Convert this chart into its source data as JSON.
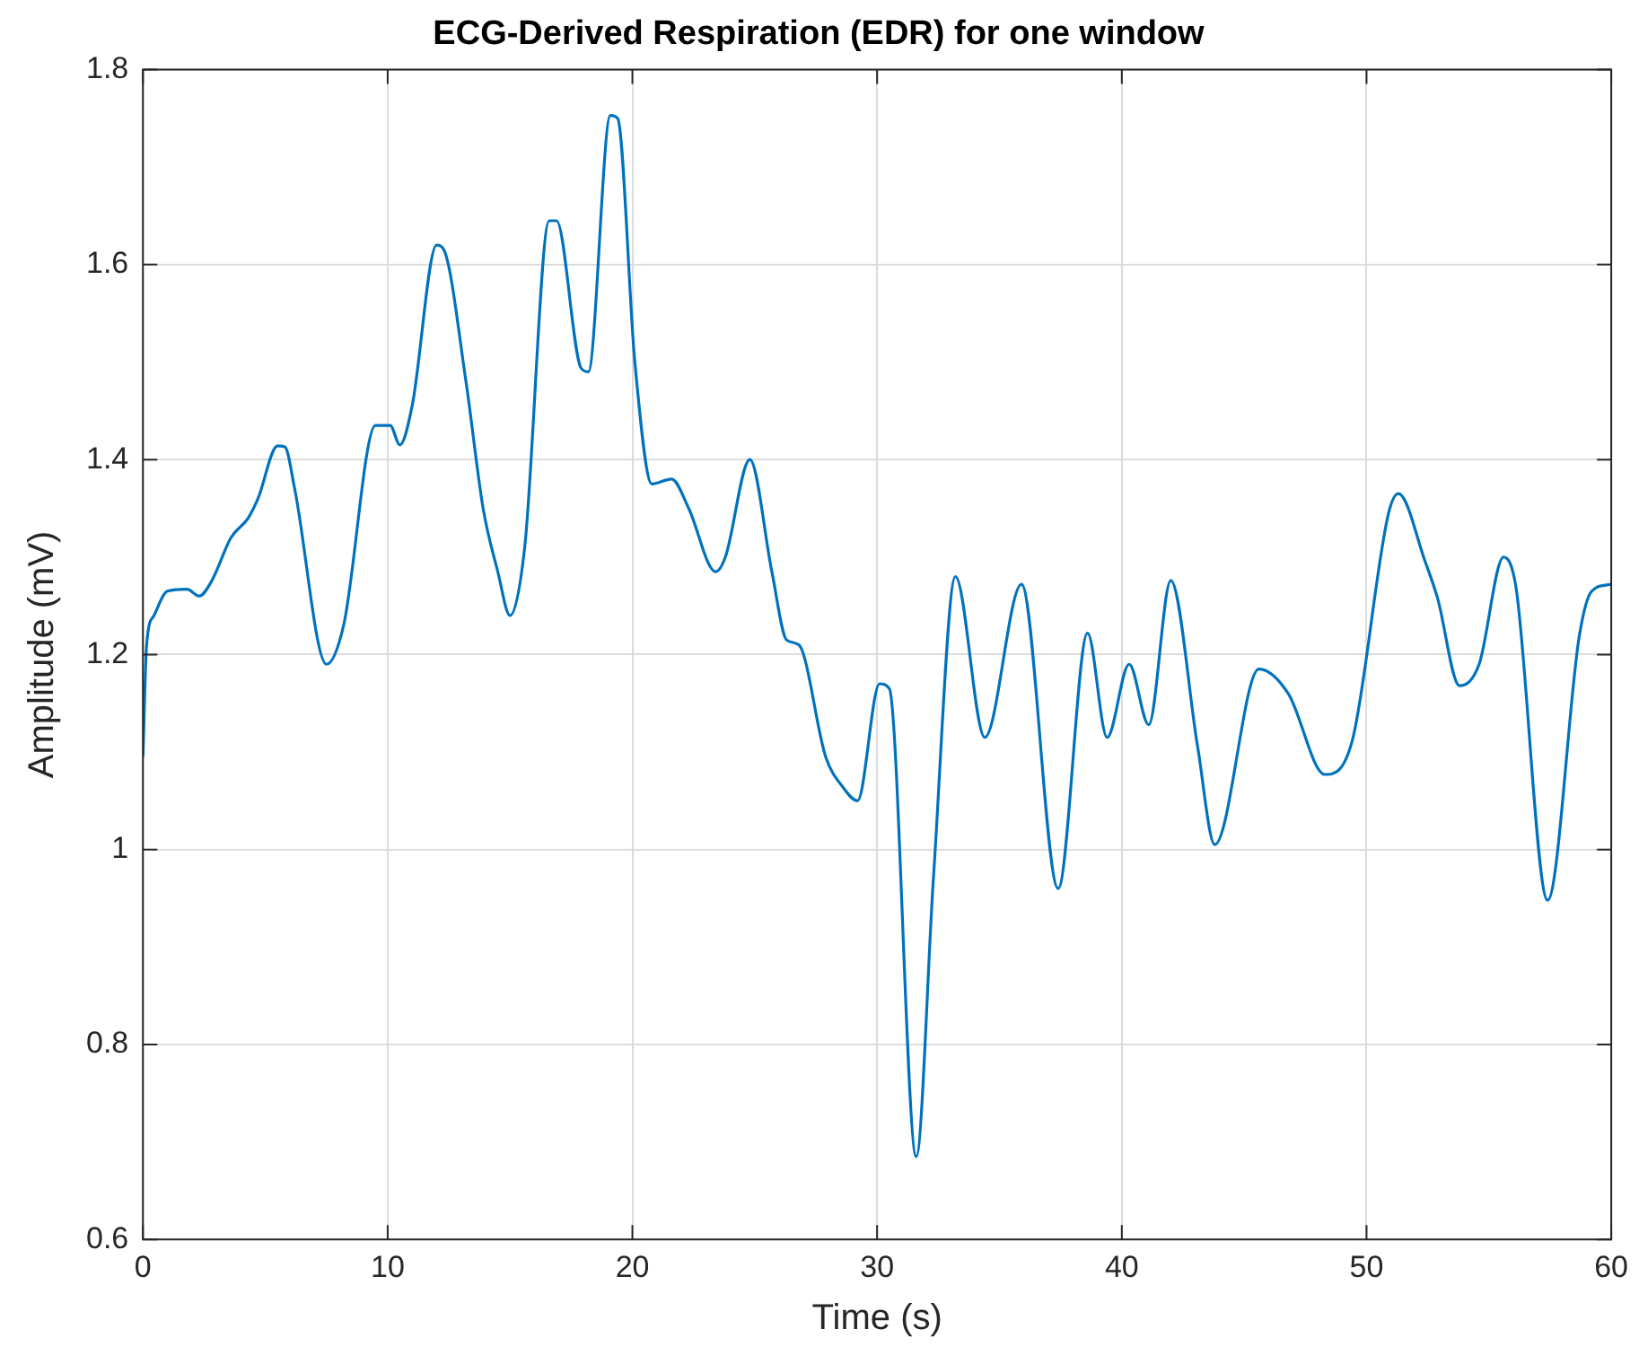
{
  "chart_data": {
    "type": "line",
    "title": "ECG-Derived Respiration (EDR) for one window",
    "xlabel": "Time (s)",
    "ylabel": "Amplitude (mV)",
    "xlim": [
      0,
      60
    ],
    "xticks": [
      0,
      10,
      20,
      30,
      40,
      50,
      60
    ],
    "ylim": [
      0.6,
      1.8
    ],
    "yticks": [
      0.6,
      0.8,
      1,
      1.2,
      1.4,
      1.6,
      1.8
    ],
    "grid": true,
    "legend": false,
    "marker": "none",
    "line_style": "solid",
    "series": [
      {
        "color": "#0072bd",
        "x": [
          0,
          0.15,
          0.45,
          1.0,
          1.8,
          2.3,
          2.8,
          3.6,
          4.3,
          4.7,
          5.5,
          5.8,
          6.2,
          7.5,
          8.2,
          9.5,
          10.1,
          10.5,
          11.0,
          12.0,
          12.3,
          13.2,
          13.9,
          14.5,
          15.0,
          15.6,
          16.6,
          16.9,
          17.9,
          18.2,
          19.1,
          19.4,
          20.1,
          20.8,
          21.6,
          22.3,
          23.4,
          23.8,
          24.8,
          25.7,
          26.3,
          26.8,
          27.9,
          28.6,
          29.2,
          30.1,
          30.5,
          31.6,
          32.3,
          33.2,
          34.4,
          35.9,
          37.4,
          38.6,
          39.4,
          40.3,
          41.1,
          42.0,
          43.1,
          43.8,
          45.6,
          46.8,
          48.3,
          49.4,
          50.9,
          51.3,
          52.4,
          52.9,
          53.8,
          54.6,
          55.6,
          56.1,
          57.4,
          58.7,
          59.2,
          60
        ],
        "values": [
          1.095,
          1.21,
          1.24,
          1.265,
          1.267,
          1.26,
          1.275,
          1.32,
          1.34,
          1.36,
          1.414,
          1.413,
          1.37,
          1.19,
          1.23,
          1.435,
          1.435,
          1.415,
          1.455,
          1.62,
          1.615,
          1.48,
          1.35,
          1.285,
          1.24,
          1.31,
          1.645,
          1.645,
          1.494,
          1.49,
          1.753,
          1.75,
          1.5,
          1.375,
          1.38,
          1.35,
          1.285,
          1.3,
          1.4,
          1.285,
          1.215,
          1.21,
          1.095,
          1.064,
          1.05,
          1.17,
          1.165,
          0.685,
          0.97,
          1.28,
          1.115,
          1.272,
          0.96,
          1.222,
          1.115,
          1.19,
          1.128,
          1.276,
          1.105,
          1.005,
          1.185,
          1.16,
          1.077,
          1.11,
          1.345,
          1.365,
          1.295,
          1.258,
          1.168,
          1.19,
          1.3,
          1.27,
          0.948,
          1.22,
          1.265,
          1.272
        ]
      }
    ]
  }
}
